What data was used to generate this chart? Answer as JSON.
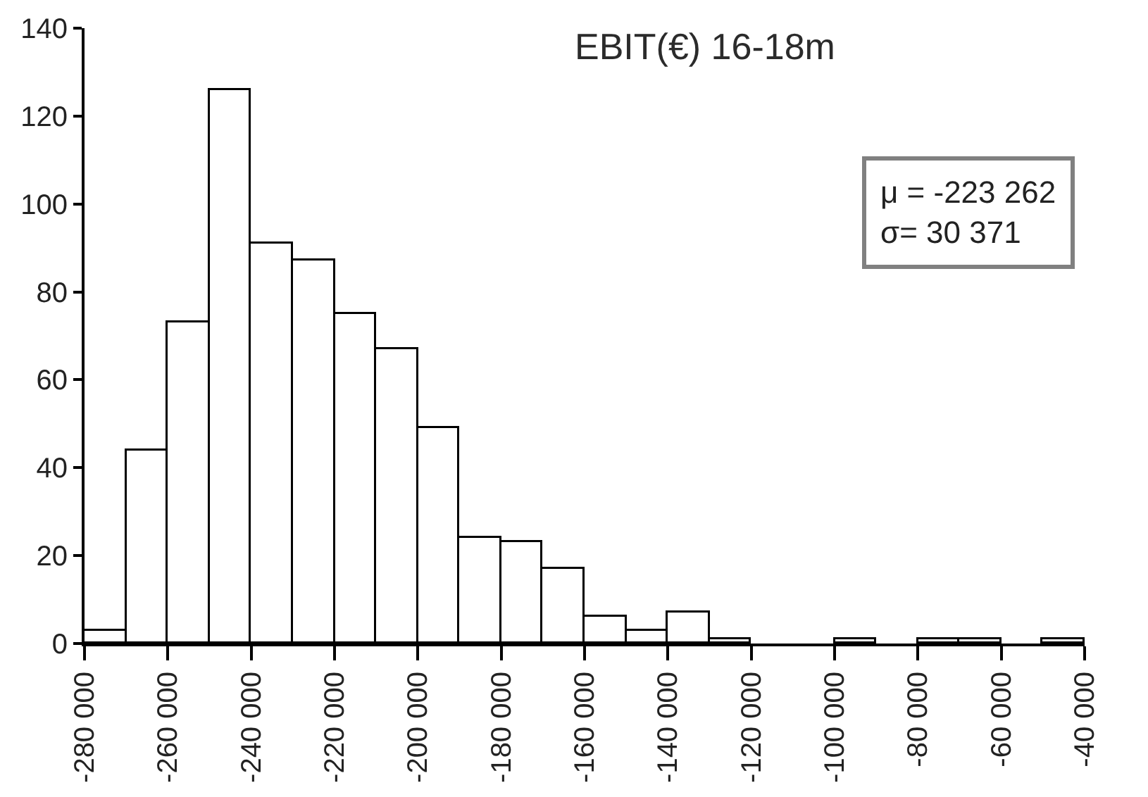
{
  "chart_data": {
    "type": "histogram",
    "title": "EBIT(€) 16-18m",
    "annotations": [
      "μ = -223 262",
      "σ= 30 371"
    ],
    "bins": [
      -280000,
      -270000,
      -260000,
      -250000,
      -240000,
      -230000,
      -220000,
      -210000,
      -200000,
      -190000,
      -180000,
      -170000,
      -160000,
      -150000,
      -140000,
      -130000,
      -120000,
      -110000,
      -100000,
      -90000,
      -80000,
      -70000,
      -60000,
      -50000,
      -40000
    ],
    "values": [
      3,
      44,
      73,
      126,
      91,
      87,
      75,
      67,
      49,
      24,
      23,
      17,
      6,
      3,
      7,
      1,
      0,
      0,
      1,
      0,
      1,
      1,
      0,
      1
    ],
    "color": "#ffffff",
    "xlim": [
      -280000,
      -40000
    ],
    "xticks": [
      {
        "value": -280000,
        "label": "-280 000"
      },
      {
        "value": -260000,
        "label": "-260 000"
      },
      {
        "value": -240000,
        "label": "-240 000"
      },
      {
        "value": -220000,
        "label": "-220 000"
      },
      {
        "value": -200000,
        "label": "-200 000"
      },
      {
        "value": -180000,
        "label": "-180 000"
      },
      {
        "value": -160000,
        "label": "-160 000"
      },
      {
        "value": -140000,
        "label": "-140 000"
      },
      {
        "value": -120000,
        "label": "-120 000"
      },
      {
        "value": -100000,
        "label": "-100 000"
      },
      {
        "value": -80000,
        "label": "-80 000"
      },
      {
        "value": -60000,
        "label": "-60 000"
      },
      {
        "value": -40000,
        "label": "-40 000"
      }
    ],
    "ylim": [
      0,
      140
    ],
    "yticks": [
      0,
      20,
      40,
      60,
      80,
      100,
      120,
      140
    ]
  }
}
